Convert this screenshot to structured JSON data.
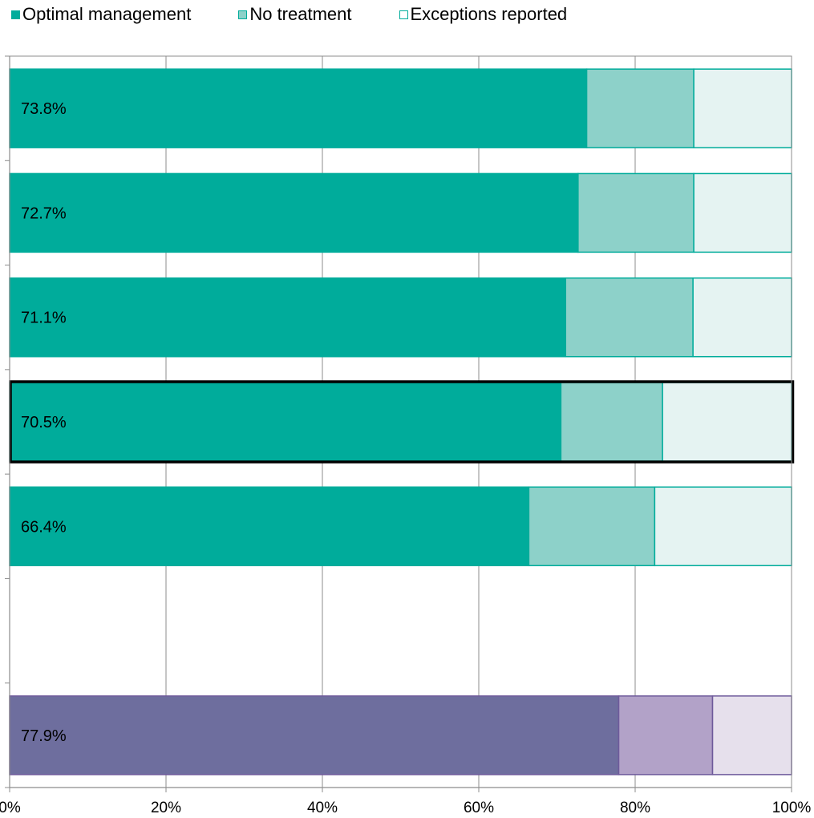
{
  "chart_data": {
    "type": "bar",
    "orientation": "horizontal",
    "stacked": true,
    "legend_position": "top",
    "grid": true,
    "xlim": [
      0,
      100
    ],
    "x_tick_labels": [
      "0%",
      "20%",
      "40%",
      "60%",
      "80%",
      "100%"
    ],
    "x_ticks": [
      0,
      20,
      40,
      60,
      80,
      100
    ],
    "series_names": [
      "Optimal management",
      "No treatment",
      "Exceptions reported"
    ],
    "bars": [
      {
        "label": "73.8%",
        "values": [
          73.8,
          13.7,
          12.5
        ],
        "colors": [
          "#00ac9b",
          "#8dd1c9",
          "#e5f3f2"
        ],
        "edge": "#00ac9b",
        "highlight": false
      },
      {
        "label": "72.7%",
        "values": [
          72.7,
          14.8,
          12.5
        ],
        "colors": [
          "#00ac9b",
          "#8dd1c9",
          "#e5f3f2"
        ],
        "edge": "#00ac9b",
        "highlight": false
      },
      {
        "label": "71.1%",
        "values": [
          71.1,
          16.3,
          12.6
        ],
        "colors": [
          "#00ac9b",
          "#8dd1c9",
          "#e5f3f2"
        ],
        "edge": "#00ac9b",
        "highlight": false
      },
      {
        "label": "70.5%",
        "values": [
          70.5,
          13.0,
          16.5
        ],
        "colors": [
          "#00ac9b",
          "#8dd1c9",
          "#e5f3f2"
        ],
        "edge": "#00ac9b",
        "highlight": true
      },
      {
        "label": "66.4%",
        "values": [
          66.4,
          16.1,
          17.5
        ],
        "colors": [
          "#00ac9b",
          "#8dd1c9",
          "#e5f3f2"
        ],
        "edge": "#00ac9b",
        "highlight": false
      },
      {
        "label": "",
        "values": null,
        "colors": null,
        "edge": null,
        "highlight": false
      },
      {
        "label": "77.9%",
        "values": [
          77.9,
          12.0,
          10.1
        ],
        "colors": [
          "#6e6e9e",
          "#b2a2c8",
          "#e6e0ec"
        ],
        "edge": "#6e5a9b",
        "highlight": false
      }
    ]
  },
  "legend": {
    "items": [
      {
        "label": "Optimal management",
        "color": "#00ac9b",
        "border": "#00ac9b"
      },
      {
        "label": "No treatment",
        "color": "#8dd1c9",
        "border": "#00ac9b"
      },
      {
        "label": "Exceptions reported",
        "color": "#ffffff",
        "border": "#00ac9b"
      }
    ]
  }
}
